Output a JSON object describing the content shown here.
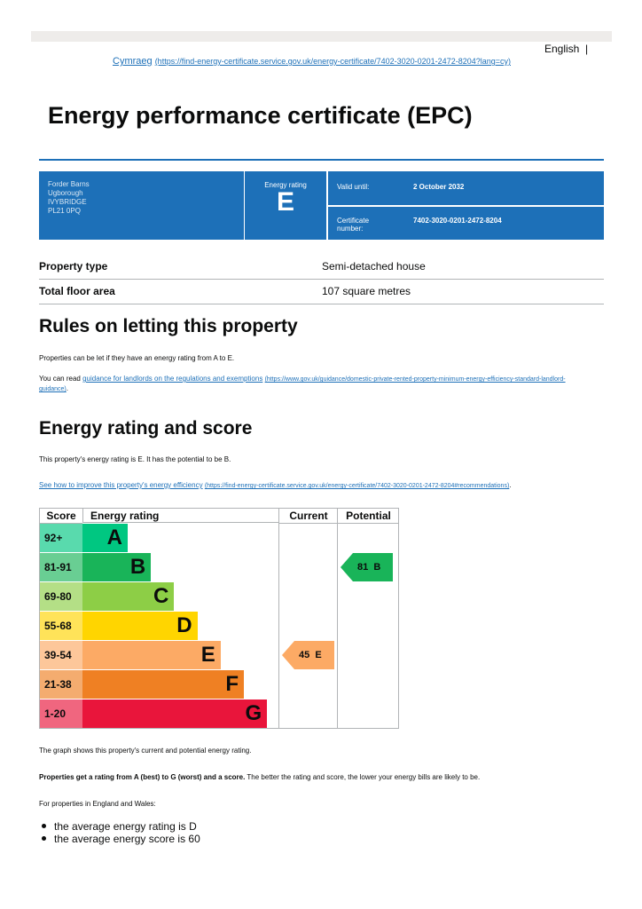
{
  "header": {
    "language": "English",
    "welsh_link": "Cymraeg",
    "welsh_url": "(https://find-energy-certificate.service.gov.uk/energy-certificate/7402-3020-0201-2472-8204?lang=cy)"
  },
  "title": "Energy performance certificate (EPC)",
  "summary": {
    "address": [
      "Forder Barns",
      "Ugborough",
      "IVYBRIDGE",
      "PL21 0PQ"
    ],
    "rating_label": "Energy rating",
    "rating": "E",
    "valid_label": "Valid until:",
    "valid": "2 October 2032",
    "cert_label": "Certificate number:",
    "cert": "7402-3020-0201-2472-8204"
  },
  "property": {
    "rows": [
      [
        "Property type",
        "Semi-detached house"
      ],
      [
        "Total floor area",
        "107 square metres"
      ]
    ]
  },
  "rules": {
    "heading": "Rules on letting this property",
    "p1": "Properties can be let if they have an energy rating from A to E.",
    "p2_prefix": "You can read ",
    "p2_link": "guidance for landlords on the regulations and exemptions",
    "p2_url": "(https://www.gov.uk/guidance/domestic-private-rented-property-minimum-energy-efficiency-standard-landlord-guidance)",
    "p2_suffix": "."
  },
  "rating": {
    "heading": "Energy rating and score",
    "text": "This property's energy rating is E. It has the potential to be B.",
    "link": "See how to improve this property's energy efficiency",
    "url": "(https://find-energy-certificate.service.gov.uk/energy-certificate/7402-3020-0201-2472-8204#recommendations)",
    "suffix": "."
  },
  "epc": {
    "headers": [
      "Score",
      "Energy rating",
      "Current",
      "Potential"
    ],
    "bands": [
      {
        "score": "92+",
        "letter": "A",
        "color": "#00c781"
      },
      {
        "score": "81-91",
        "letter": "B",
        "color": "#19b459"
      },
      {
        "score": "69-80",
        "letter": "C",
        "color": "#8dce46"
      },
      {
        "score": "55-68",
        "letter": "D",
        "color": "#ffd500"
      },
      {
        "score": "39-54",
        "letter": "E",
        "color": "#fcaa65"
      },
      {
        "score": "21-38",
        "letter": "F",
        "color": "#ef8023"
      },
      {
        "score": "1-20",
        "letter": "G",
        "color": "#e9153b"
      }
    ],
    "current": {
      "value": 45,
      "letter": "E"
    },
    "potential": {
      "value": 81,
      "letter": "B"
    }
  },
  "after": {
    "p1": "The graph shows this property's current and potential energy rating.",
    "p2_bold": "Properties get a rating from A (best) to G (worst) and a score.",
    "p2_rest": " The better the rating and score, the lower your energy bills are likely to be.",
    "p3": "For properties in England and Wales:",
    "list": [
      "the average energy rating is D",
      "the average energy score is 60"
    ]
  }
}
